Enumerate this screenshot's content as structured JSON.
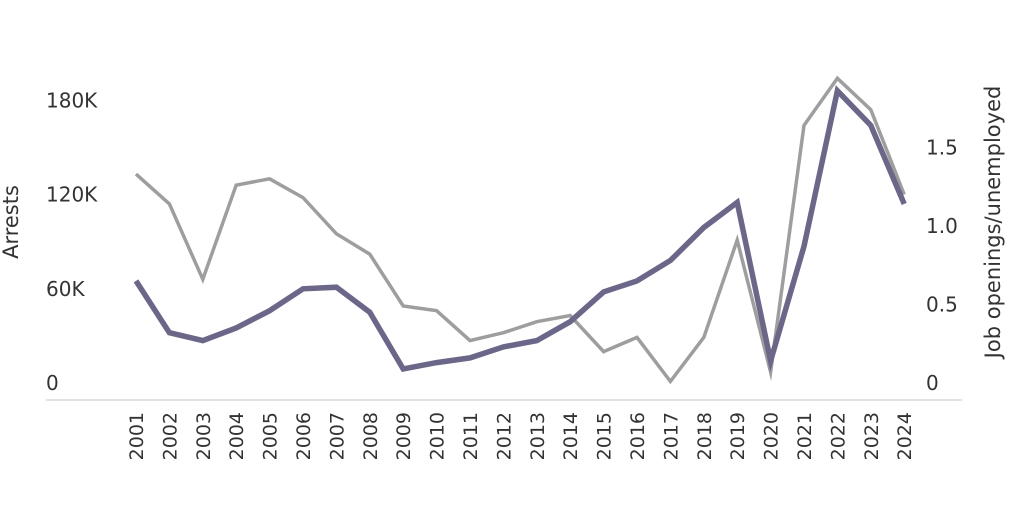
{
  "chart_data": {
    "type": "line",
    "title": "",
    "xlabel": "",
    "ylabel": "Arrests",
    "ylabel_right": "Job openings/unemployed",
    "categories": [
      "2001",
      "2002",
      "2003",
      "2004",
      "2005",
      "2006",
      "2007",
      "2008",
      "2009",
      "2010",
      "2011",
      "2012",
      "2013",
      "2014",
      "2015",
      "2016",
      "2017",
      "2018",
      "2019",
      "2020",
      "2021",
      "2022",
      "2023",
      "2024"
    ],
    "y_left": {
      "min": 0,
      "max": 240000,
      "ticks": [
        0,
        60000,
        120000,
        180000
      ],
      "tick_labels": [
        "0",
        "60K",
        "120K",
        "180K"
      ]
    },
    "y_right": {
      "min": 0,
      "max": 2.4,
      "ticks": [
        0,
        0.5,
        1.0,
        1.5
      ],
      "tick_labels": [
        "0",
        "0.5",
        "1.0",
        "1.5"
      ]
    },
    "grid": false,
    "legend": "none",
    "series": [
      {
        "axis": "left",
        "color": "#9e9e9e",
        "width": 3.5,
        "values": [
          133000,
          114000,
          66000,
          126000,
          130000,
          118000,
          95000,
          82000,
          49000,
          46000,
          27000,
          32000,
          39000,
          43000,
          20000,
          29000,
          1000,
          29000,
          91000,
          7000,
          164000,
          194000,
          174000,
          120000
        ]
      },
      {
        "axis": "right",
        "color": "#6b6788",
        "width": 5.5,
        "values": [
          0.65,
          0.32,
          0.27,
          0.35,
          0.46,
          0.6,
          0.61,
          0.45,
          0.09,
          0.13,
          0.16,
          0.23,
          0.27,
          0.39,
          0.58,
          0.65,
          0.78,
          0.99,
          1.15,
          0.14,
          0.87,
          1.86,
          1.64,
          1.14
        ]
      }
    ]
  }
}
